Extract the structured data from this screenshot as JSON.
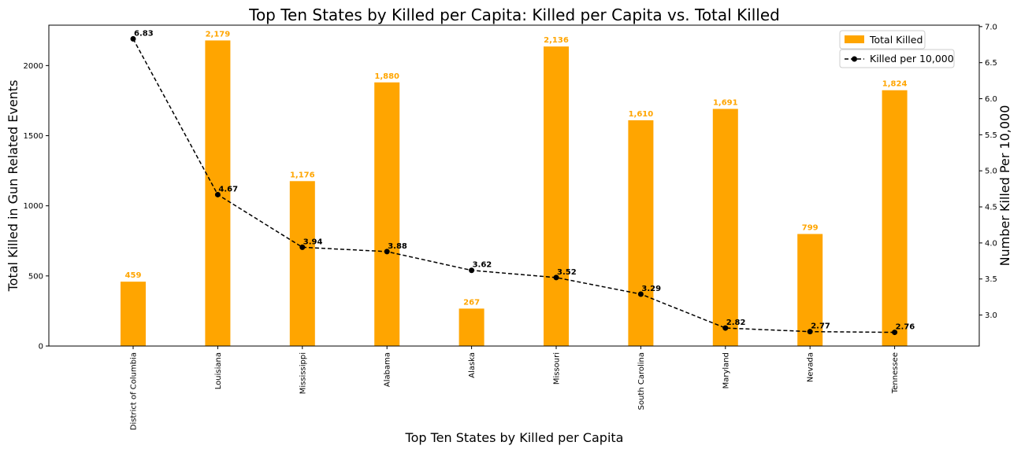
{
  "chart_data": {
    "type": "bar",
    "title": "Top Ten States by Killed per Capita: Killed per Capita vs. Total Killed",
    "xlabel": "Top Ten States by Killed per Capita",
    "ylabel": "Total Killed in Gun Related Events",
    "y2label": "Number Killed Per 10,000",
    "categories": [
      "District of Columbia",
      "Louisiana",
      "Mississippi",
      "Alabama",
      "Alaska",
      "Missouri",
      "South Carolina",
      "Maryland",
      "Nevada",
      "Tennessee"
    ],
    "series": [
      {
        "name": "Total Killed",
        "type": "bar",
        "axis": "left",
        "color": "#ffa500",
        "values": [
          459,
          2179,
          1176,
          1880,
          267,
          2136,
          1610,
          1691,
          799,
          1824
        ],
        "labels": [
          "459",
          "2,179",
          "1,176",
          "1,880",
          "267",
          "2,136",
          "1,610",
          "1,691",
          "799",
          "1,824"
        ]
      },
      {
        "name": "Killed per 10,000",
        "type": "line",
        "axis": "right",
        "color": "#000000",
        "line_style": "dashed",
        "marker": "circle",
        "values": [
          6.83,
          4.67,
          3.94,
          3.88,
          3.62,
          3.52,
          3.29,
          2.82,
          2.77,
          2.76
        ],
        "labels": [
          "6.83",
          "4.67",
          "3.94",
          "3.88",
          "3.62",
          "3.52",
          "3.29",
          "2.82",
          "2.77",
          "2.76"
        ]
      }
    ],
    "ylim": [
      0,
      2288
    ],
    "yticks": [
      0,
      500,
      1000,
      1500,
      2000
    ],
    "y2lim": [
      2.57,
      7.02
    ],
    "y2ticks": [
      3.0,
      3.5,
      4.0,
      4.5,
      5.0,
      5.5,
      6.0,
      6.5,
      7.0
    ],
    "y2tick_labels": [
      "3.0",
      "3.5",
      "4.0",
      "4.5",
      "5.0",
      "5.5",
      "6.0",
      "6.5",
      "7.0"
    ],
    "grid": false,
    "legend_position": "top-right"
  }
}
